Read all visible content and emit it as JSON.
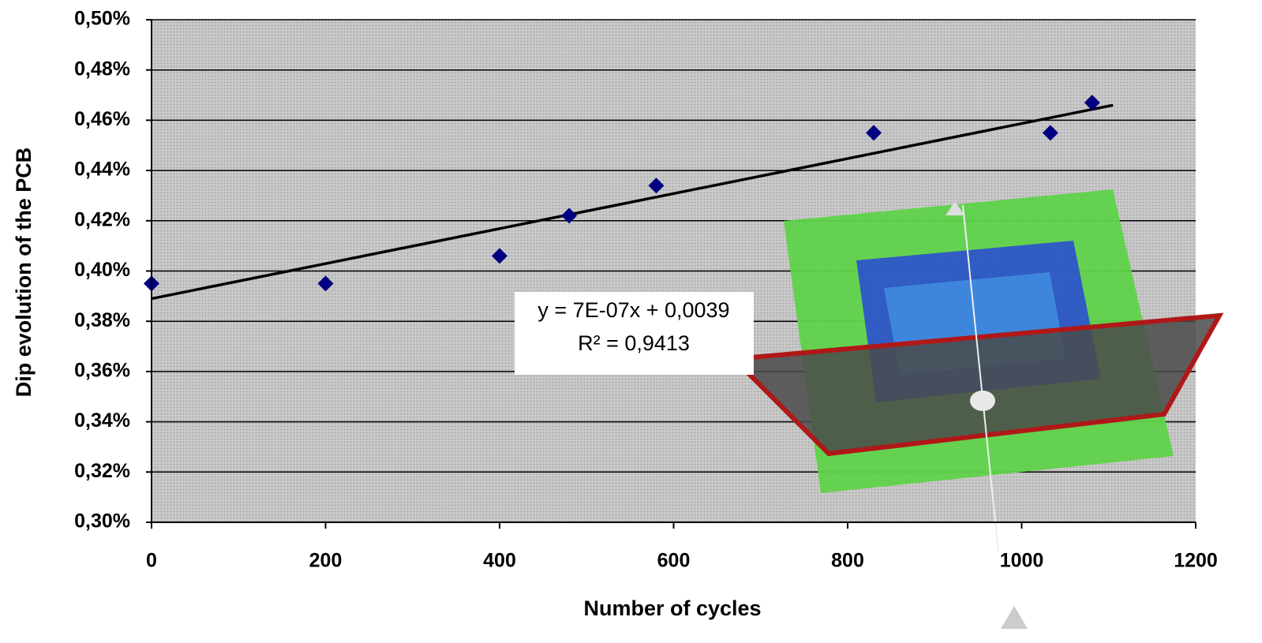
{
  "chart_data": {
    "type": "scatter",
    "x_label": "Number of cycles",
    "y_label": "Dip evolution of the PCB",
    "x": [
      0,
      200,
      400,
      480,
      580,
      830,
      1033,
      1081
    ],
    "values": [
      0.395,
      0.395,
      0.406,
      0.422,
      0.434,
      0.455,
      0.455,
      0.467
    ],
    "color": "#000080",
    "trendline": {
      "x": [
        0,
        1105
      ],
      "values": [
        0.389,
        0.466
      ],
      "color": "#000000"
    },
    "annotations": [
      "y = 7E-07x  + 0,0039",
      "R² = 0,9413"
    ],
    "xlim": [
      0,
      1200
    ],
    "ylim": [
      0.3,
      0.5
    ],
    "xticks": [
      0,
      200,
      400,
      600,
      800,
      1000,
      1200
    ],
    "yticks": [
      {
        "value": 0.3,
        "label": "0,30%"
      },
      {
        "value": 0.32,
        "label": "0,32%"
      },
      {
        "value": 0.34,
        "label": "0,34%"
      },
      {
        "value": 0.36,
        "label": "0,36%"
      },
      {
        "value": 0.38,
        "label": "0,38%"
      },
      {
        "value": 0.4,
        "label": "0,40%"
      },
      {
        "value": 0.42,
        "label": "0,42%"
      },
      {
        "value": 0.44,
        "label": "0,44%"
      },
      {
        "value": 0.46,
        "label": "0,46%"
      },
      {
        "value": 0.48,
        "label": "0,48%"
      },
      {
        "value": 0.5,
        "label": "0,50%"
      }
    ],
    "grid": true
  }
}
